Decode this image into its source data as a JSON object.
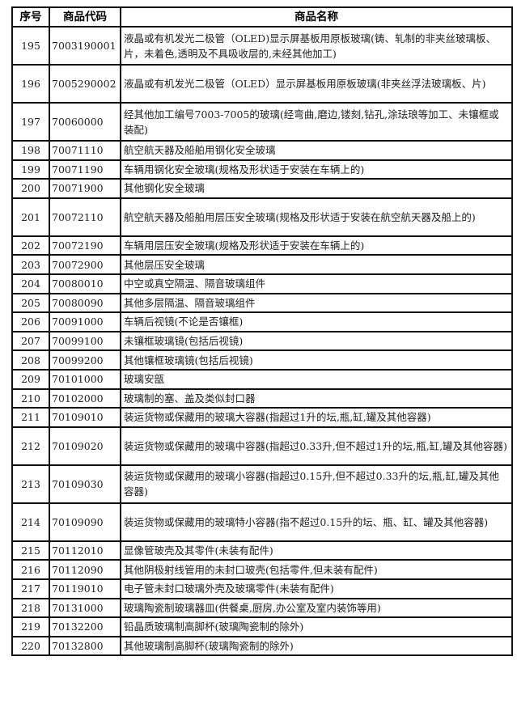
{
  "table": {
    "headers": [
      "序号",
      "商品代码",
      "商品名称"
    ],
    "rows": [
      {
        "no": "195",
        "code": "7003190001",
        "name": "液晶或有机发光二极管（OLED)显示屏基板用原板玻璃(铸、轧制的非夹丝玻璃板、片，未着色,透明及不具吸收层的,未经其他加工)"
      },
      {
        "no": "196",
        "code": "7005290002",
        "name": "液晶或有机发光二极管（OLED）显示屏基板用原板玻璃(非夹丝浮法玻璃板、片)"
      },
      {
        "no": "197",
        "code": "70060000",
        "name": "经其他加工编号7003-7005的玻璃(经弯曲,磨边,镂刻,钻孔,涂珐琅等加工、未镶框或装配)"
      },
      {
        "no": "198",
        "code": "70071110",
        "name": "航空航天器及船舶用钢化安全玻璃"
      },
      {
        "no": "199",
        "code": "70071190",
        "name": "车辆用钢化安全玻璃(规格及形状适于安装在车辆上的)"
      },
      {
        "no": "200",
        "code": "70071900",
        "name": "其他钢化安全玻璃"
      },
      {
        "no": "201",
        "code": "70072110",
        "name": "航空航天器及船舶用层压安全玻璃(规格及形状适于安装在航空航天器及船上的)"
      },
      {
        "no": "202",
        "code": "70072190",
        "name": "车辆用层压安全玻璃(规格及形状适于安装在车辆上的)"
      },
      {
        "no": "203",
        "code": "70072900",
        "name": "其他层压安全玻璃"
      },
      {
        "no": "204",
        "code": "70080010",
        "name": "中空或真空隔温、隔音玻璃组件"
      },
      {
        "no": "205",
        "code": "70080090",
        "name": "其他多层隔温、隔音玻璃组件"
      },
      {
        "no": "206",
        "code": "70091000",
        "name": "车辆后视镜(不论是否镶框)"
      },
      {
        "no": "207",
        "code": "70099100",
        "name": "未镶框玻璃镜(包括后视镜)"
      },
      {
        "no": "208",
        "code": "70099200",
        "name": "其他镶框玻璃镜(包括后视镜)"
      },
      {
        "no": "209",
        "code": "70101000",
        "name": "玻璃安瓿"
      },
      {
        "no": "210",
        "code": "70102000",
        "name": "玻璃制的塞、盖及类似封口器"
      },
      {
        "no": "211",
        "code": "70109010",
        "name": "装运货物或保藏用的玻璃大容器(指超过1升的坛,瓶,缸,罐及其他容器)"
      },
      {
        "no": "212",
        "code": "70109020",
        "name": "装运货物或保藏用的玻璃中容器(指超过0.33升,但不超过1升的坛,瓶,缸,罐及其他容器)"
      },
      {
        "no": "213",
        "code": "70109030",
        "name": "装运货物或保藏用的玻璃小容器(指超过0.15升,但不超过0.33升的坛,瓶,缸,罐及其他容器)"
      },
      {
        "no": "214",
        "code": "70109090",
        "name": "装运货物或保藏用的玻璃特小容器(指不超过0.15升的坛、瓶、缸、罐及其他容器)"
      },
      {
        "no": "215",
        "code": "70112010",
        "name": "显像管玻壳及其零件(未装有配件)"
      },
      {
        "no": "216",
        "code": "70112090",
        "name": "其他阴极射线管用的未封口玻壳(包括零件,但未装有配件)"
      },
      {
        "no": "217",
        "code": "70119010",
        "name": "电子管未封口玻璃外壳及玻璃零件(未装有配件)"
      },
      {
        "no": "218",
        "code": "70131000",
        "name": "玻璃陶瓷制玻璃器皿(供餐桌,厨房,办公室及室内装饰等用)"
      },
      {
        "no": "219",
        "code": "70132200",
        "name": "铅晶质玻璃制高脚杯(玻璃陶瓷制的除外)"
      },
      {
        "no": "220",
        "code": "70132800",
        "name": "其他玻璃制高脚杯(玻璃陶瓷制的除外)"
      }
    ]
  }
}
